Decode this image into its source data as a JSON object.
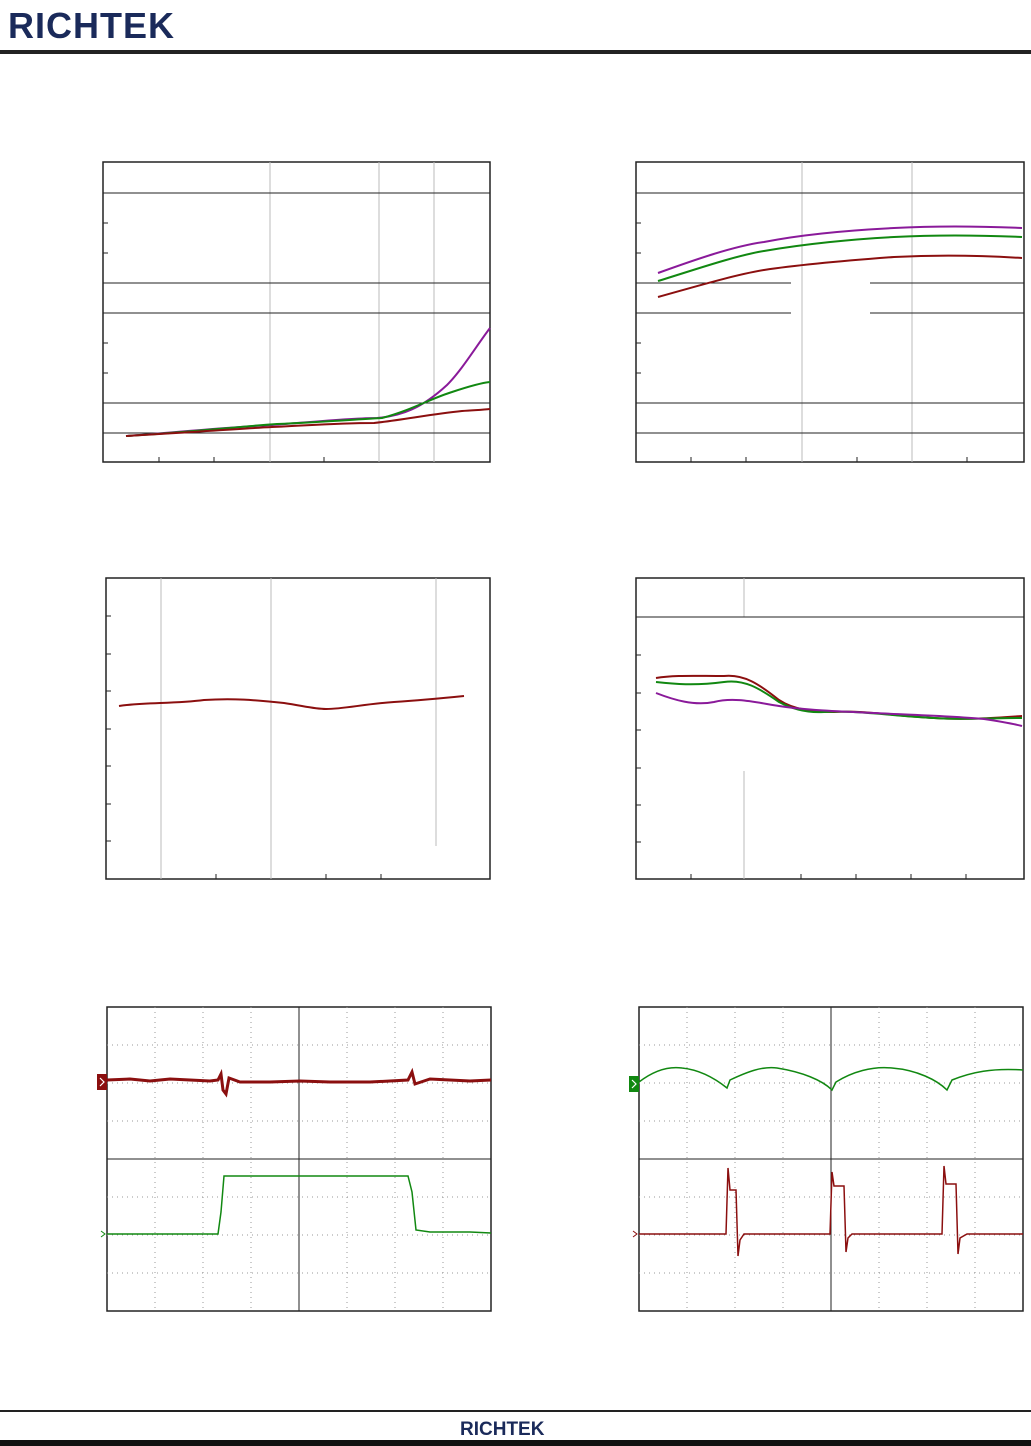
{
  "header": {
    "logo_text": "RICHTEK"
  },
  "footer": {
    "logo_text": "RICHTEK"
  },
  "colors": {
    "trace_dark_red": "#8b0f0f",
    "trace_green": "#118811",
    "trace_purple": "#8a1a9a",
    "rule": "#222222"
  }
}
